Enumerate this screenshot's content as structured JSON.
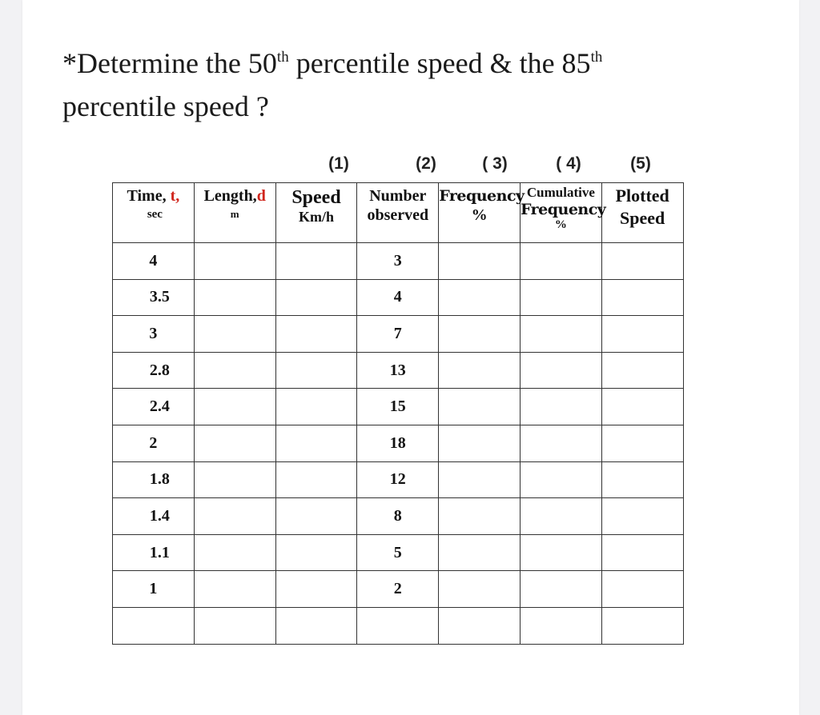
{
  "title": {
    "line1_prefix": "*Determine the 50",
    "sup1": "th",
    "line1_middle": " percentile speed & the 85",
    "sup2": "th",
    "line2": "percentile speed ?"
  },
  "column_numbers": [
    "(1)",
    "(2)",
    "( 3)",
    "( 4)",
    "(5)"
  ],
  "headers": {
    "time": {
      "label": "Time, ",
      "var": "t,",
      "unit": "sec"
    },
    "length": {
      "label": "Length,",
      "var": "d",
      "unit": "m"
    },
    "speed": {
      "label": "Speed",
      "unit": "Km/h"
    },
    "number": {
      "label": "Number",
      "sub": "observed"
    },
    "frequency": {
      "label": "Frequency",
      "sub": "%"
    },
    "cumulative": {
      "label": "Cumulative",
      "sub": "Frequency",
      "sub2": "%"
    },
    "plotted": {
      "label": "Plotted",
      "sub": "Speed"
    }
  },
  "rows": [
    {
      "time": "4",
      "number": "3"
    },
    {
      "time": "3.5",
      "number": "4"
    },
    {
      "time": "3",
      "number": "7"
    },
    {
      "time": "2.8",
      "number": "13"
    },
    {
      "time": "2.4",
      "number": "15"
    },
    {
      "time": "2",
      "number": "18"
    },
    {
      "time": "1.8",
      "number": "12"
    },
    {
      "time": "1.4",
      "number": "8"
    },
    {
      "time": "1.1",
      "number": "5"
    },
    {
      "time": "1",
      "number": "2"
    },
    {
      "time": "",
      "number": ""
    }
  ]
}
